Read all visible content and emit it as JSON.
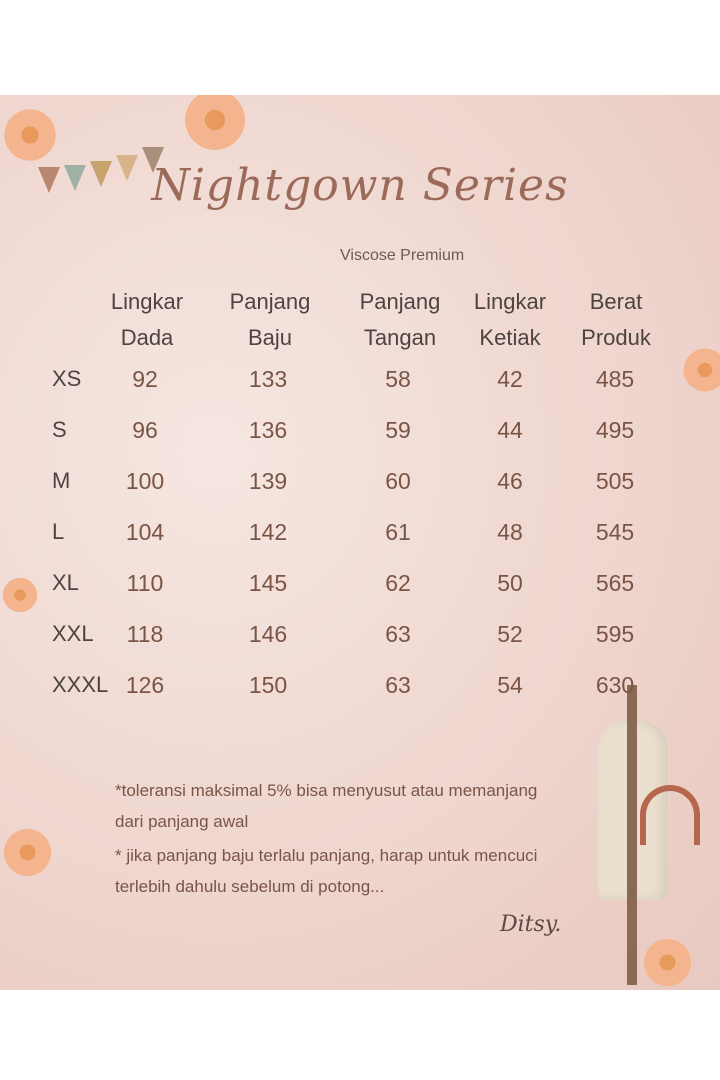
{
  "title": "Nightgown Series",
  "subtitle": "Viscose Premium",
  "headers": [
    [
      "Lingkar",
      "Dada"
    ],
    [
      "Panjang",
      "Baju"
    ],
    [
      "Panjang",
      "Tangan"
    ],
    [
      "Lingkar",
      "Ketiak"
    ],
    [
      "Berat",
      "Produk"
    ]
  ],
  "rows": [
    {
      "size": "XS",
      "values": [
        "92",
        "133",
        "58",
        "42",
        "485"
      ]
    },
    {
      "size": "S",
      "values": [
        "96",
        "136",
        "59",
        "44",
        "495"
      ]
    },
    {
      "size": "M",
      "values": [
        "100",
        "139",
        "60",
        "46",
        "505"
      ]
    },
    {
      "size": "L",
      "values": [
        "104",
        "142",
        "61",
        "48",
        "545"
      ]
    },
    {
      "size": "XL",
      "values": [
        "110",
        "145",
        "62",
        "50",
        "565"
      ]
    },
    {
      "size": "XXL",
      "values": [
        "118",
        "146",
        "63",
        "52",
        "595"
      ]
    },
    {
      "size": "XXXL",
      "values": [
        "126",
        "150",
        "63",
        "54",
        "630"
      ]
    }
  ],
  "notes": [
    "*toleransi  maksimal 5% bisa menyusut atau memanjang",
    "dari panjang awal",
    "* jika panjang baju terlalu panjang, harap  untuk mencuci",
    "terlebih dahulu sebelum di potong..."
  ],
  "brand": "Ditsy.",
  "colors": {
    "header": "#4d4340",
    "value": "#7a5546",
    "title": "#9b6a58"
  }
}
